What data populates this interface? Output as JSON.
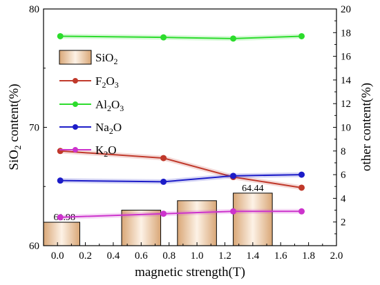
{
  "chart_data": {
    "type": "bar+line",
    "xlabel": "magnetic strength(T)",
    "ylabel_left": "SiO2 content(%)",
    "ylabel_right": "other content(%)",
    "xlim": [
      -0.1,
      2.0
    ],
    "ylim_left": [
      60,
      80
    ],
    "ylim_right": [
      0,
      20
    ],
    "x_ticks": [
      0.0,
      0.2,
      0.4,
      0.6,
      0.8,
      1.0,
      1.2,
      1.4,
      1.6,
      1.8,
      2.0
    ],
    "x_tick_labels": [
      "0.0",
      "0.2",
      "0.4",
      "0.6",
      "0.8",
      "1.0",
      "1.2",
      "1.4",
      "1.6",
      "1.8",
      "2.0"
    ],
    "y_left_ticks": [
      60,
      70,
      80
    ],
    "y_left_tick_labels": [
      "60",
      "70",
      "80"
    ],
    "y_right_ticks": [
      2,
      4,
      6,
      8,
      10,
      12,
      14,
      16,
      18,
      20
    ],
    "y_right_tick_labels": [
      "2",
      "4",
      "6",
      "8",
      "10",
      "12",
      "14",
      "16",
      "18",
      "20"
    ],
    "bars": {
      "name": "SiO2",
      "axis": "left",
      "x": [
        0.02,
        0.6,
        1.0,
        1.4
      ],
      "values": [
        61.98,
        63.0,
        63.8,
        64.44
      ],
      "width": 0.28,
      "data_labels": [
        {
          "index": 0,
          "text": "61.98"
        },
        {
          "index": 3,
          "text": "64.44"
        }
      ]
    },
    "series": [
      {
        "name": "F2O3",
        "axis": "right",
        "color": "#c0392b",
        "x": [
          0.02,
          0.76,
          1.26,
          1.75
        ],
        "values": [
          8.0,
          7.4,
          5.8,
          4.9
        ]
      },
      {
        "name": "Al2O3",
        "axis": "right",
        "color": "#2cdc2c",
        "x": [
          0.02,
          0.76,
          1.26,
          1.75
        ],
        "values": [
          17.7,
          17.6,
          17.5,
          17.7
        ]
      },
      {
        "name": "Na2O",
        "axis": "right",
        "color": "#1c1cc8",
        "x": [
          0.02,
          0.76,
          1.26,
          1.75
        ],
        "values": [
          5.5,
          5.4,
          5.9,
          6.0
        ]
      },
      {
        "name": "K2O",
        "axis": "right",
        "color": "#cc33cc",
        "x": [
          0.02,
          0.76,
          1.26,
          1.75
        ],
        "values": [
          2.4,
          2.7,
          2.9,
          2.9
        ]
      }
    ],
    "legend": {
      "placement": "top-left",
      "entries": [
        {
          "main": "SiO",
          "sub": "2",
          "tail": ""
        },
        {
          "main": "F",
          "sub": "2",
          "tail": "O",
          "sub2": "3"
        },
        {
          "main": "Al",
          "sub": "2",
          "tail": "O",
          "sub2": "3"
        },
        {
          "main": "Na",
          "sub": "2",
          "tail": "O"
        },
        {
          "main": "K",
          "sub": "2",
          "tail": "O"
        }
      ]
    },
    "grid": false
  }
}
